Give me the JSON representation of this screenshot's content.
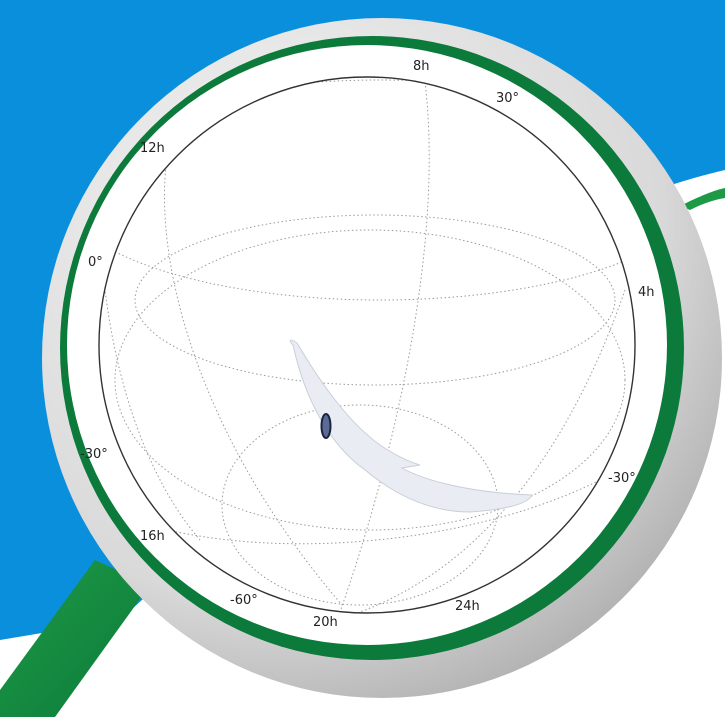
{
  "colors": {
    "background": "#ffffff",
    "sky_blue": "#0a8fdc",
    "green_dark": "#0b7a3a",
    "green_light": "#1e9a46",
    "bezel_light": "#e2e2e2",
    "bezel_dark": "#a9a9a9",
    "sky_disk": "#ffffff",
    "grid": "#9a9a9a",
    "skymap_region": "#e9ecf2",
    "skymap_region_edge": "#c9ced9",
    "localization_fill": "#5b6b96",
    "localization_edge": "#1b2440"
  },
  "labels": {
    "ra_8h": "8h",
    "dec_30_right": "30°",
    "ra_12h": "12h",
    "dec_0": "0°",
    "ra_4h": "4h",
    "dec_m30_left": "-30°",
    "dec_m30_right": "-30°",
    "ra_16h": "16h",
    "dec_m60": "-60°",
    "ra_20h": "20h",
    "ra_24h": "24h"
  }
}
